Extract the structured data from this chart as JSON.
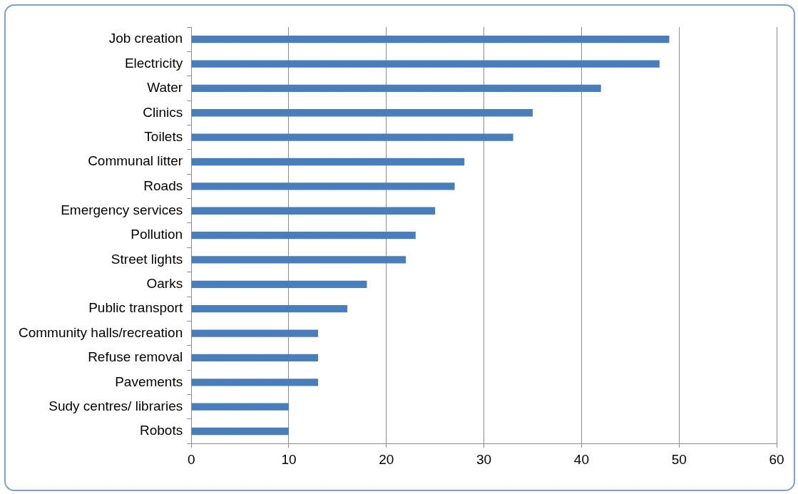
{
  "chart_data": {
    "type": "bar",
    "orientation": "horizontal",
    "categories": [
      "Job creation",
      "Electricity",
      "Water",
      "Clinics",
      "Toilets",
      "Communal litter",
      "Roads",
      "Emergency services",
      "Pollution",
      "Street lights",
      "Oarks",
      "Public transport",
      "Community halls/recreation",
      "Refuse removal",
      "Pavements",
      "Sudy centres/ libraries",
      "Robots"
    ],
    "values": [
      49,
      48,
      42,
      35,
      33,
      28,
      27,
      25,
      23,
      22,
      18,
      16,
      13,
      13,
      13,
      10,
      10
    ],
    "color": "#4a7ebb",
    "xlim": [
      0,
      60
    ],
    "xticks": [
      0,
      10,
      20,
      30,
      40,
      50,
      60
    ],
    "grid": "x",
    "legend": false
  }
}
